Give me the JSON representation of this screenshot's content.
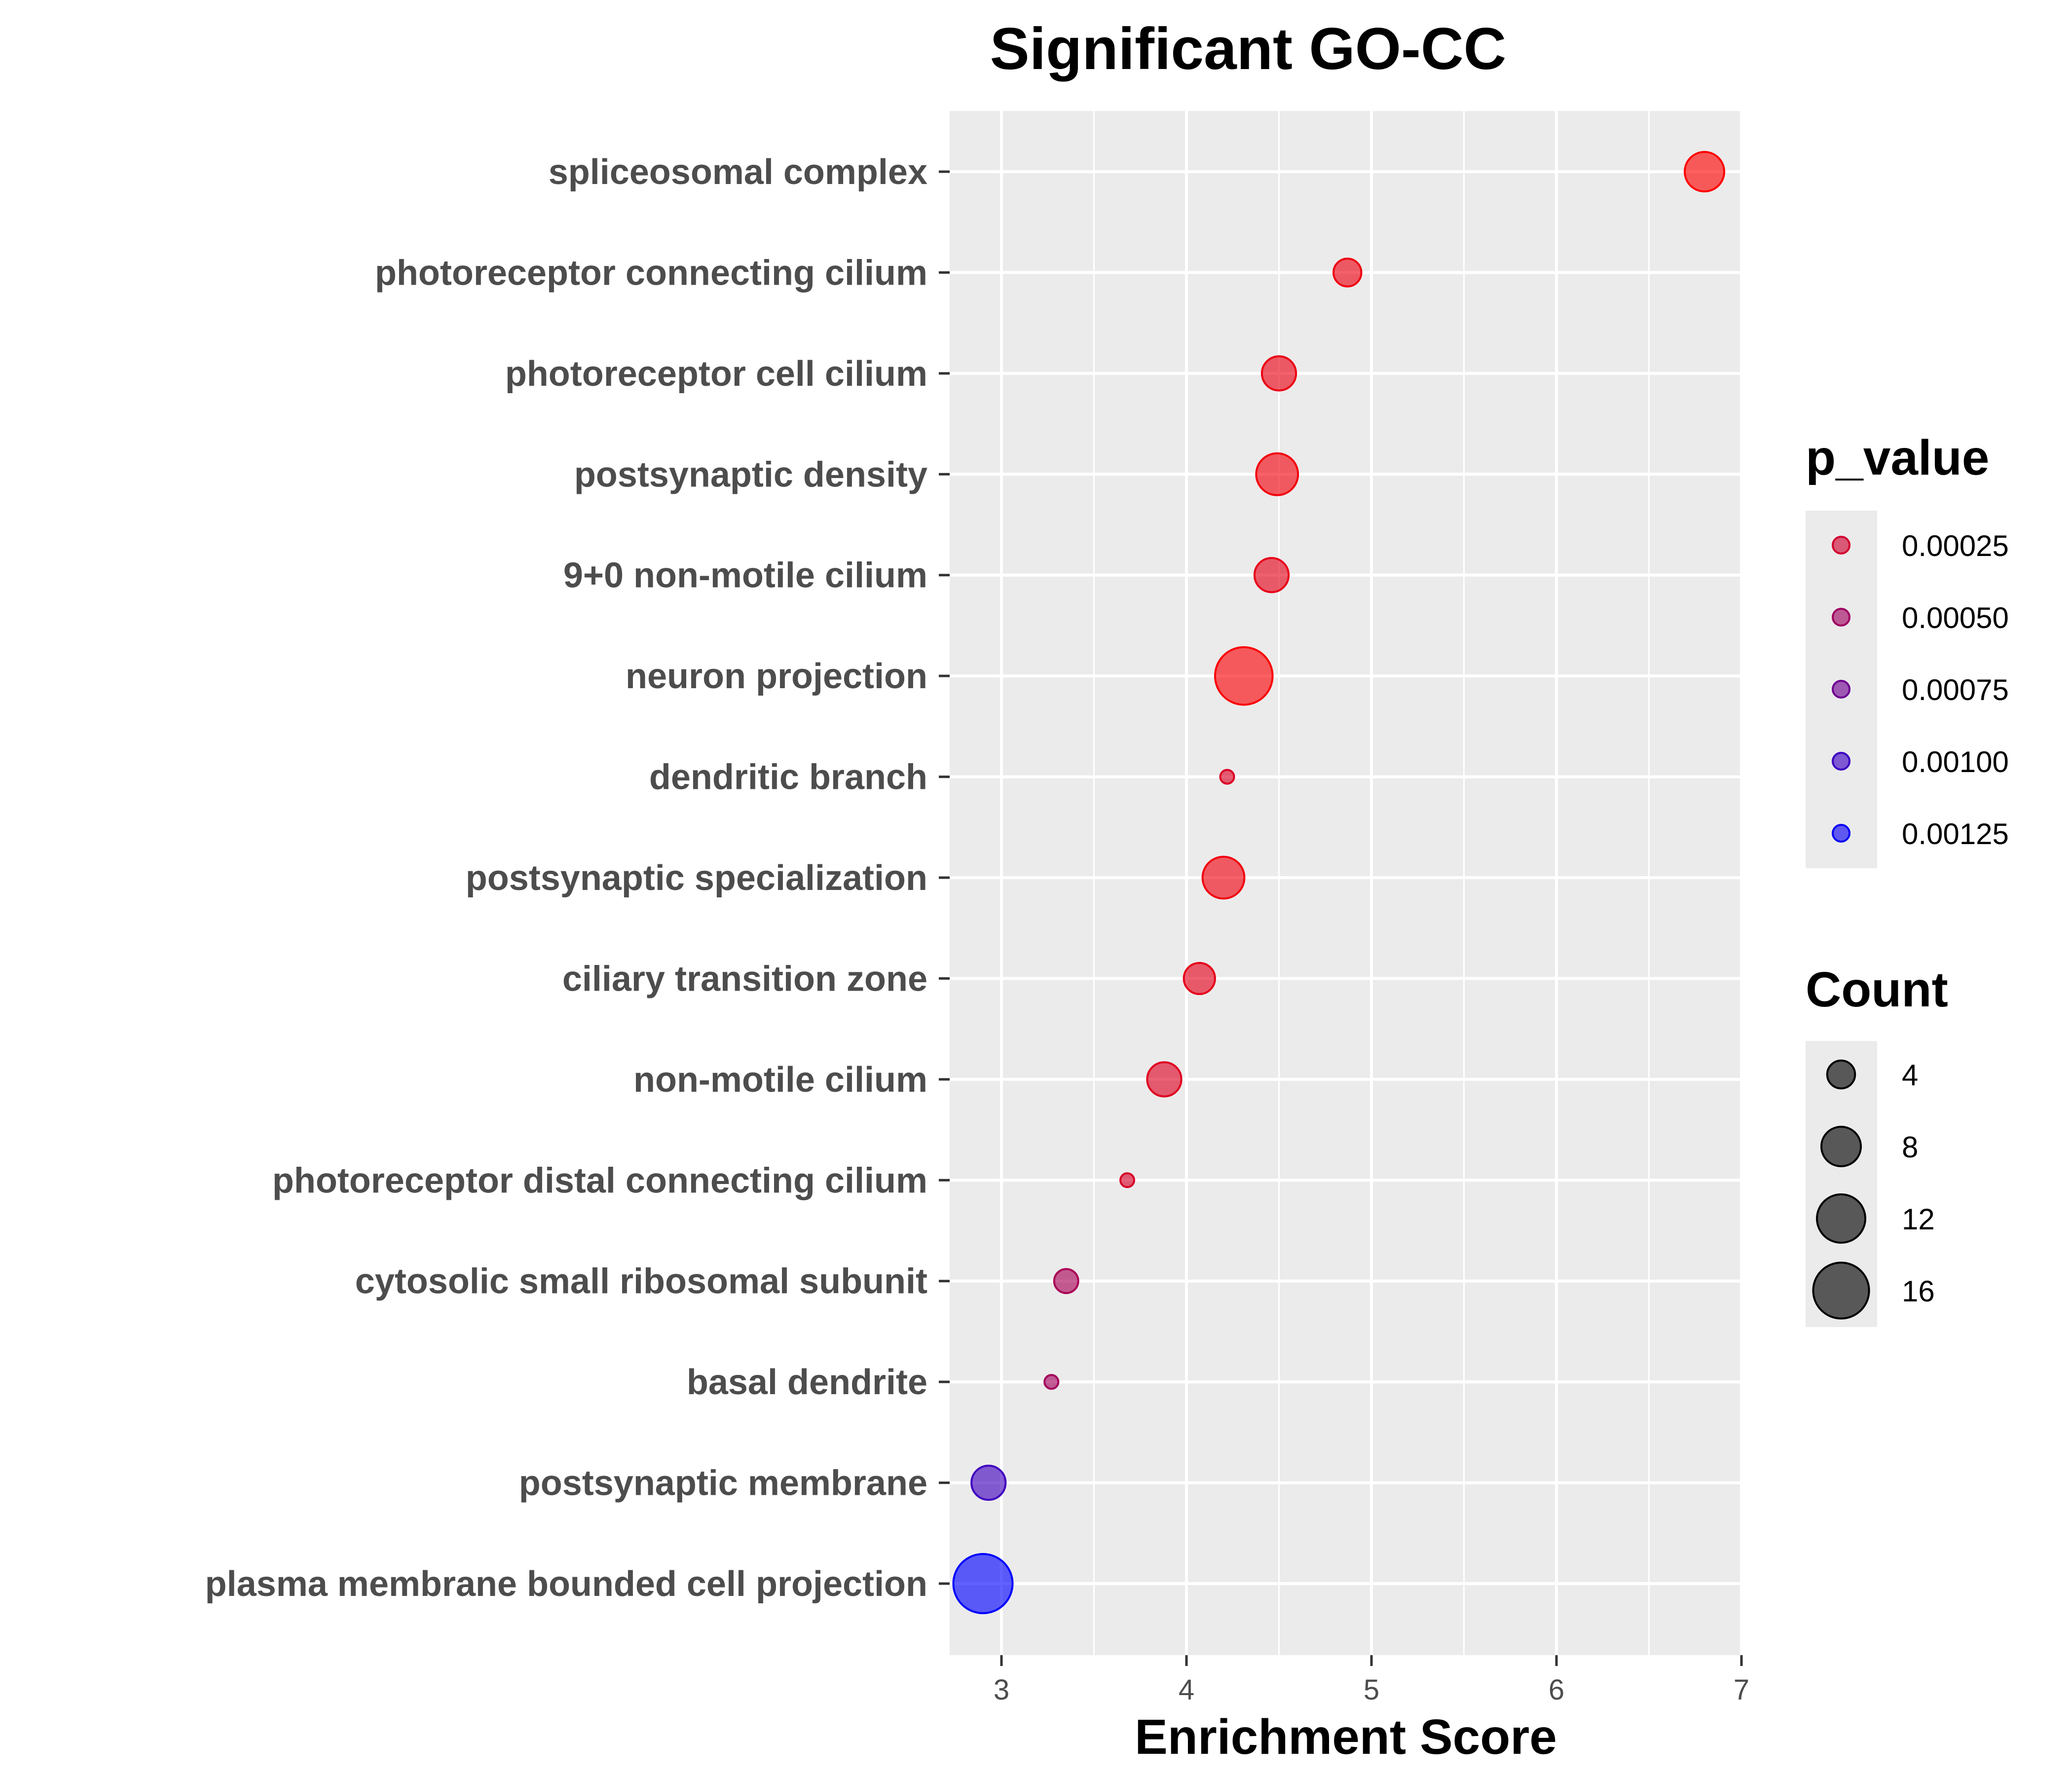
{
  "chart_data": {
    "type": "scatter",
    "title": "Significant GO-CC",
    "xlabel": "Enrichment Score",
    "ylabel": "",
    "xlim": [
      2.72,
      7.0
    ],
    "xticks": [
      3,
      4,
      5,
      6,
      7
    ],
    "grid": true,
    "categories": [
      "spliceosomal complex",
      "photoreceptor connecting cilium",
      "photoreceptor cell cilium",
      "postsynaptic density",
      "9+0 non-motile cilium",
      "neuron projection",
      "dendritic branch",
      "postsynaptic specialization",
      "ciliary transition zone",
      "non-motile cilium",
      "photoreceptor distal connecting cilium",
      "cytosolic small ribosomal subunit",
      "basal dendrite",
      "postsynaptic membrane",
      "plasma membrane bounded cell projection"
    ],
    "points": [
      {
        "category": "spliceosomal complex",
        "x": 6.8,
        "count": 8,
        "p_value": 2e-05
      },
      {
        "category": "photoreceptor connecting cilium",
        "x": 4.87,
        "count": 4,
        "p_value": 0.0001
      },
      {
        "category": "photoreceptor cell cilium",
        "x": 4.5,
        "count": 6,
        "p_value": 0.00012
      },
      {
        "category": "postsynaptic density",
        "x": 4.49,
        "count": 9,
        "p_value": 8e-05
      },
      {
        "category": "9+0 non-motile cilium",
        "x": 4.46,
        "count": 6,
        "p_value": 0.00014
      },
      {
        "category": "neuron projection",
        "x": 4.31,
        "count": 17,
        "p_value": 4e-05
      },
      {
        "category": "dendritic branch",
        "x": 4.22,
        "count": 1,
        "p_value": 0.0002
      },
      {
        "category": "postsynaptic specialization",
        "x": 4.2,
        "count": 9,
        "p_value": 9e-05
      },
      {
        "category": "ciliary transition zone",
        "x": 4.07,
        "count": 5,
        "p_value": 0.00015
      },
      {
        "category": "non-motile cilium",
        "x": 3.88,
        "count": 6,
        "p_value": 0.00018
      },
      {
        "category": "photoreceptor distal connecting cilium",
        "x": 3.68,
        "count": 1,
        "p_value": 0.00022
      },
      {
        "category": "cytosolic small ribosomal subunit",
        "x": 3.35,
        "count": 3,
        "p_value": 0.00045
      },
      {
        "category": "basal dendrite",
        "x": 3.27,
        "count": 1,
        "p_value": 0.00048
      },
      {
        "category": "postsynaptic membrane",
        "x": 2.93,
        "count": 6,
        "p_value": 0.00098
      },
      {
        "category": "plasma membrane bounded cell projection",
        "x": 2.9,
        "count": 18,
        "p_value": 0.0013
      }
    ],
    "legends": {
      "color": {
        "title": "p_value",
        "values": [
          0.00025,
          0.0005,
          0.00075,
          0.001,
          0.00125
        ],
        "labels": [
          "0.00025",
          "0.00050",
          "0.00075",
          "0.00100",
          "0.00125"
        ],
        "low_color": "#ff0000",
        "high_color": "#0000ff",
        "range": [
          2e-05,
          0.0013
        ]
      },
      "size": {
        "title": "Count",
        "values": [
          4,
          8,
          12,
          16
        ],
        "labels": [
          "4",
          "8",
          "12",
          "16"
        ],
        "range": [
          1,
          18
        ]
      }
    },
    "colors": {
      "panel_background": "#ebebeb",
      "grid_line": "#ffffff",
      "legend_key_background": "#ebebeb",
      "size_legend_fill": "#333333"
    }
  }
}
